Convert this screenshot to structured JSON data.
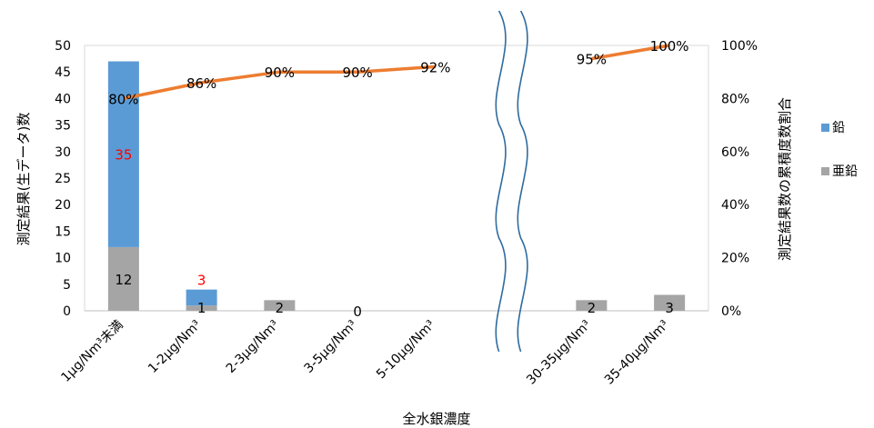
{
  "chart_data": {
    "type": "bar",
    "xlabel": "全水銀濃度",
    "ylabel_left": "測定結果(生データ)数",
    "ylabel_right": "測定結果数の累積度数割合",
    "ylim_left": [
      0,
      50
    ],
    "yticks_left": [
      "0",
      "5",
      "10",
      "15",
      "20",
      "25",
      "30",
      "35",
      "40",
      "45",
      "50"
    ],
    "ylim_right": [
      0,
      100
    ],
    "yticks_right": [
      "0%",
      "20%",
      "40%",
      "60%",
      "80%",
      "100%"
    ],
    "categories": [
      "1μg/Nm³未満",
      "1-2μg/Nm³",
      "2-3μg/Nm³",
      "3-5μg/Nm³",
      "5-10μg/Nm³",
      "30-35μg/Nm³",
      "35-40μg/Nm³"
    ],
    "axis_break": "between 5-10μg/Nm³ and 30-35μg/Nm³",
    "series": [
      {
        "name": "亜鉛",
        "type": "bar",
        "stack": "a",
        "color": "#a5a5a5",
        "values": [
          12,
          1,
          2,
          0,
          0,
          2,
          3
        ],
        "labels": [
          "12",
          "1",
          "2",
          "0",
          "",
          "2",
          "3"
        ],
        "label_color": "#000000"
      },
      {
        "name": "鉛",
        "type": "bar",
        "stack": "a",
        "color": "#5b9bd5",
        "values": [
          35,
          3,
          0,
          0,
          0,
          0,
          0
        ],
        "labels": [
          "35",
          "3",
          "",
          "",
          "",
          "",
          ""
        ],
        "label_color": "#ff0000"
      },
      {
        "type": "line",
        "axis": "right",
        "color": "#ed7d31",
        "values": [
          80,
          86,
          90,
          90,
          92,
          95,
          100
        ],
        "labels": [
          "80%",
          "86%",
          "90%",
          "90%",
          "92%",
          "95%",
          "100%"
        ]
      }
    ],
    "legend": {
      "position": "right",
      "entries": [
        "鉛",
        "亜鉛"
      ]
    }
  }
}
